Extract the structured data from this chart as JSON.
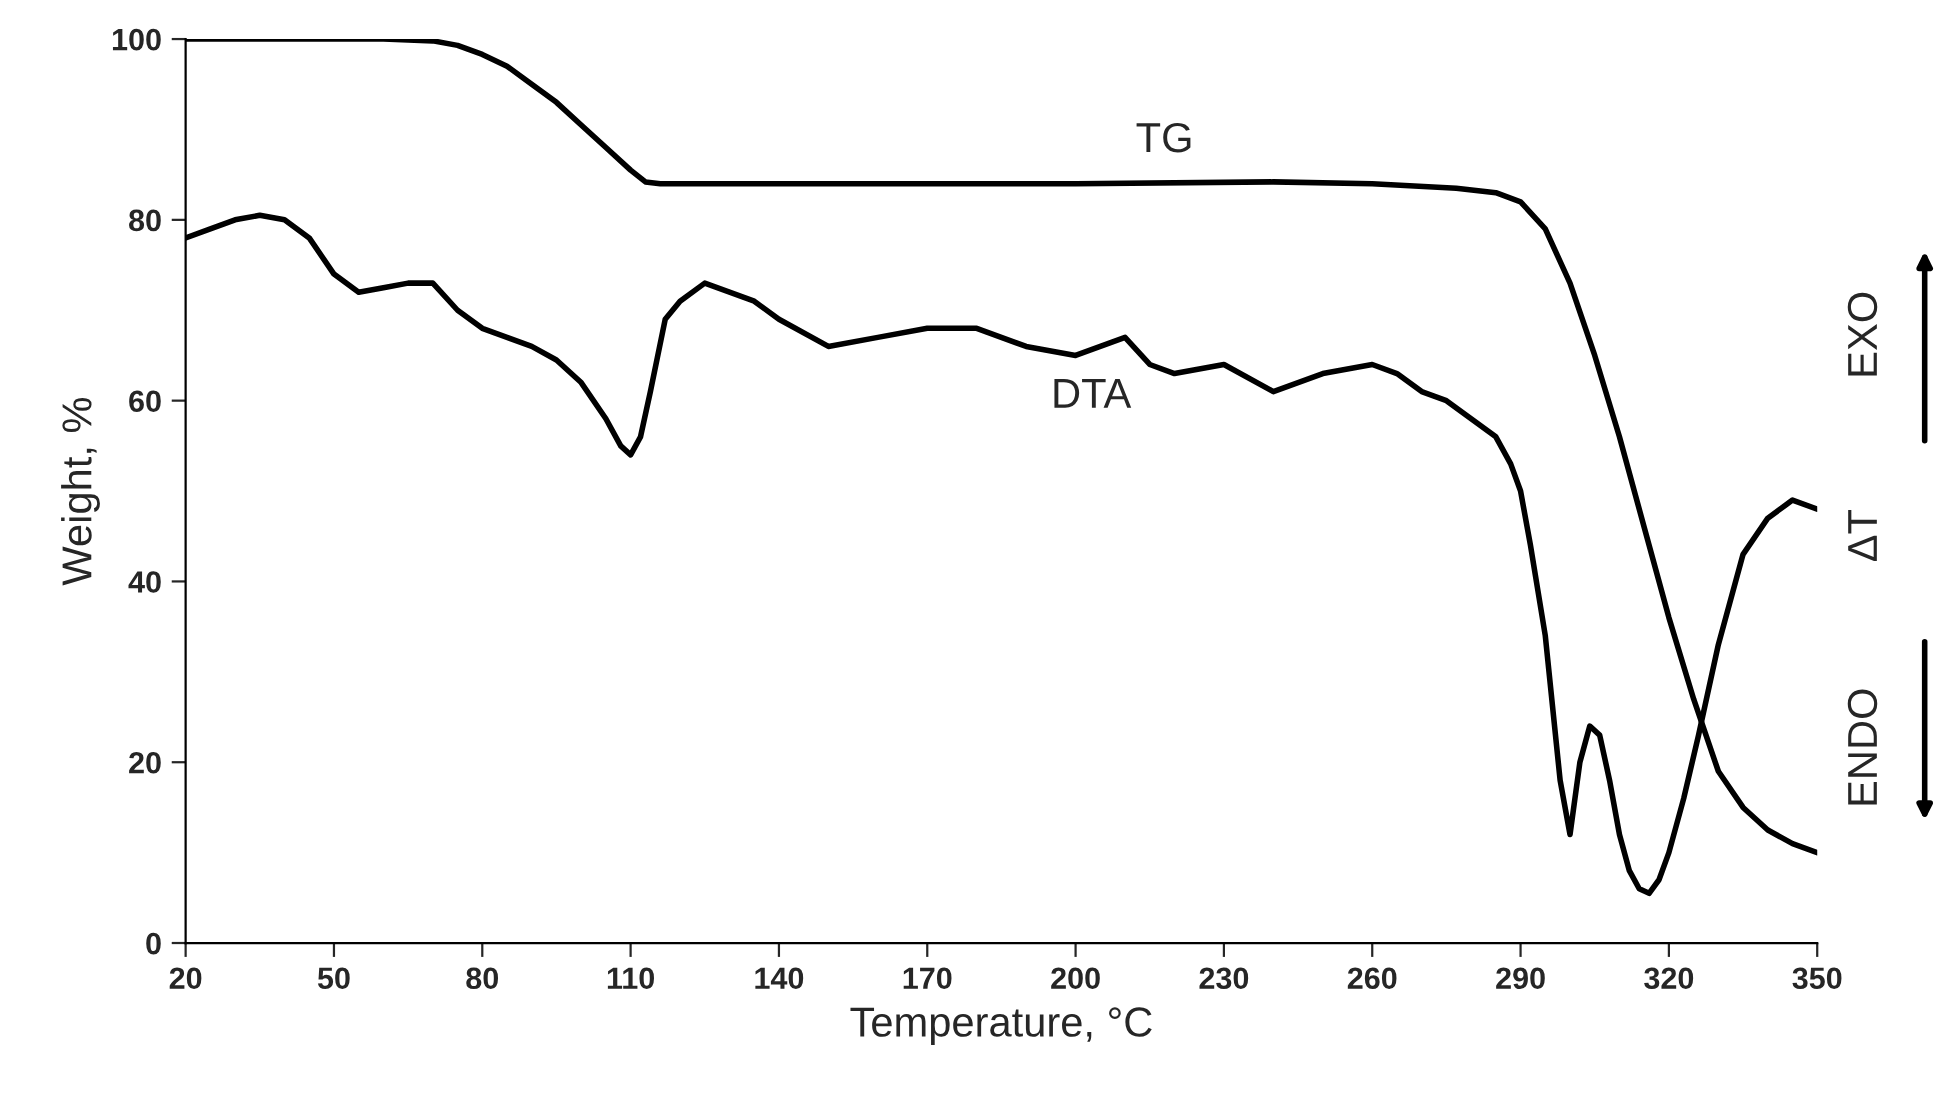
{
  "chart_data": {
    "type": "line",
    "xlabel": "Temperature, °C",
    "ylabel": "Weight, %",
    "xlim": [
      20,
      350
    ],
    "xticks": [
      20,
      50,
      80,
      110,
      140,
      170,
      200,
      230,
      260,
      290,
      320,
      350
    ],
    "ylim": [
      0,
      100
    ],
    "yticks": [
      0,
      20,
      40,
      60,
      80,
      100
    ],
    "grid": false,
    "legend": false,
    "marker": "none",
    "line_style": "solid",
    "series": [
      {
        "name": "TG",
        "color": "#000000",
        "x": [
          20,
          40,
          60,
          70,
          75,
          80,
          85,
          90,
          95,
          100,
          105,
          110,
          113,
          116,
          130,
          160,
          200,
          240,
          260,
          277,
          285,
          290,
          295,
          300,
          305,
          310,
          315,
          320,
          325,
          330,
          335,
          340,
          345,
          350
        ],
        "values": [
          100,
          100,
          100,
          99.8,
          99.3,
          98.3,
          97,
          95,
          93,
          90.5,
          88,
          85.5,
          84.2,
          84,
          84,
          84,
          84,
          84.2,
          84,
          83.5,
          83,
          82,
          79,
          73,
          65,
          56,
          46,
          36,
          27,
          19,
          15,
          12.5,
          11,
          10
        ]
      },
      {
        "name": "DTA",
        "color": "#000000",
        "x": [
          20,
          25,
          30,
          35,
          40,
          45,
          50,
          55,
          60,
          65,
          70,
          75,
          80,
          85,
          90,
          95,
          100,
          105,
          108,
          110,
          112,
          114,
          117,
          120,
          125,
          130,
          135,
          140,
          150,
          160,
          170,
          180,
          190,
          200,
          205,
          210,
          215,
          220,
          230,
          240,
          250,
          260,
          265,
          270,
          275,
          280,
          285,
          288,
          290,
          292,
          295,
          298,
          300,
          302,
          304,
          306,
          308,
          310,
          312,
          314,
          316,
          318,
          320,
          323,
          326,
          330,
          335,
          340,
          345,
          350
        ],
        "values": [
          78,
          79,
          80,
          80.5,
          80,
          78,
          74,
          72,
          72.5,
          73,
          73,
          70,
          68,
          67,
          66,
          64.5,
          62,
          58,
          55,
          54,
          56,
          61,
          69,
          71,
          73,
          72,
          71,
          69,
          66,
          67,
          68,
          68,
          66,
          65,
          66,
          67,
          64,
          63,
          64,
          61,
          63,
          64,
          63,
          61,
          60,
          58,
          56,
          53,
          50,
          44,
          34,
          18,
          12,
          20,
          24,
          23,
          18,
          12,
          8,
          6,
          5.5,
          7,
          10,
          16,
          23,
          33,
          43,
          47,
          49,
          48
        ]
      }
    ],
    "annotations": [
      "EXO",
      "ΔT",
      "ENDO"
    ]
  }
}
